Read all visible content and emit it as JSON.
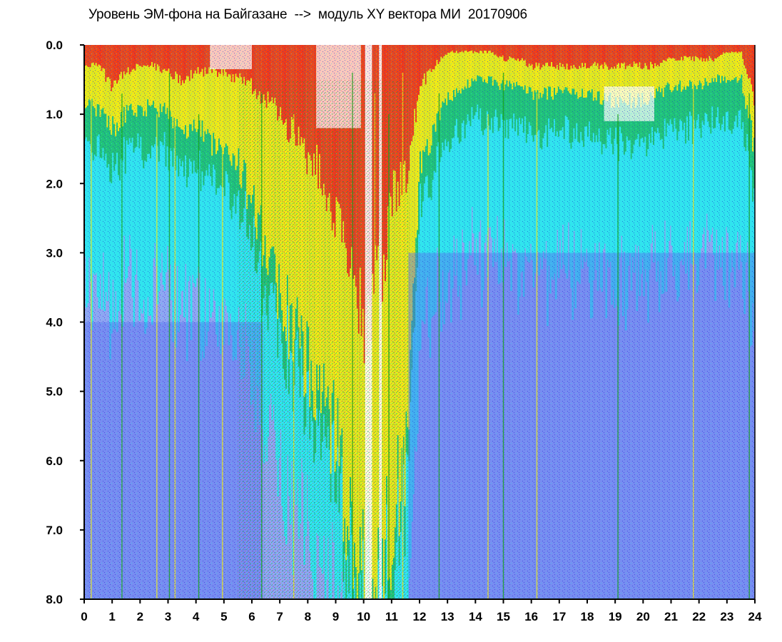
{
  "chart_data": {
    "type": "heatmap",
    "title": "Уровень ЭМ-фона на Байгазане  -->  модуль XY вектора МИ  20170906",
    "xlabel": "",
    "ylabel": "",
    "xlim": [
      0,
      24
    ],
    "ylim": [
      0.0,
      8.0
    ],
    "y_inverted": true,
    "grid": false,
    "x_ticks": [
      "0",
      "1",
      "2",
      "3",
      "4",
      "5",
      "6",
      "7",
      "8",
      "9",
      "10",
      "11",
      "12",
      "13",
      "14",
      "15",
      "16",
      "17",
      "18",
      "19",
      "20",
      "21",
      "22",
      "23",
      "24"
    ],
    "y_ticks": [
      "0.0",
      "1.0",
      "2.0",
      "3.0",
      "4.0",
      "5.0",
      "6.0",
      "7.0",
      "8.0"
    ],
    "color_levels": [
      "#1e22d8",
      "#5a6ef0",
      "#8fa6f2",
      "#30e4ee",
      "#16a816",
      "#f2ea14",
      "#f03a1a",
      "#ffffff"
    ],
    "value_axis_hours": [
      0,
      0.5,
      1,
      1.5,
      2,
      2.5,
      3,
      3.5,
      4,
      4.5,
      5,
      5.5,
      6,
      6.5,
      7,
      7.5,
      8,
      8.5,
      9,
      9.5,
      10,
      10.5,
      11,
      11.5,
      12,
      12.5,
      13,
      13.5,
      14,
      14.5,
      15,
      15.5,
      16,
      16.5,
      17,
      17.5,
      18,
      18.5,
      19,
      19.5,
      20,
      20.5,
      21,
      21.5,
      22,
      22.5,
      23,
      23.5,
      24
    ],
    "red_zone_depth": [
      0.3,
      0.3,
      0.6,
      0.4,
      0.3,
      0.3,
      0.4,
      0.5,
      0.4,
      0.4,
      0.4,
      0.5,
      0.6,
      0.8,
      1.0,
      1.3,
      1.6,
      1.9,
      2.4,
      3.2,
      4.0,
      3.5,
      2.2,
      1.8,
      0.6,
      0.3,
      0.1,
      0.1,
      0.1,
      0.1,
      0.2,
      0.2,
      0.3,
      0.3,
      0.3,
      0.3,
      0.3,
      0.3,
      0.3,
      0.3,
      0.3,
      0.3,
      0.2,
      0.2,
      0.2,
      0.2,
      0.1,
      0.1,
      0.9
    ],
    "yellow_zone_depth": [
      0.9,
      0.9,
      1.2,
      1.0,
      0.9,
      0.9,
      1.0,
      1.2,
      1.2,
      1.4,
      1.5,
      1.7,
      2.3,
      3.0,
      3.6,
      4.2,
      4.6,
      5.0,
      5.8,
      6.8,
      7.8,
      7.6,
      7.0,
      6.0,
      1.8,
      1.2,
      0.8,
      0.6,
      0.5,
      0.5,
      0.6,
      0.6,
      0.7,
      0.7,
      0.7,
      0.7,
      0.7,
      0.8,
      0.8,
      0.8,
      0.8,
      0.7,
      0.6,
      0.6,
      0.6,
      0.5,
      0.5,
      0.5,
      1.6
    ]
  }
}
